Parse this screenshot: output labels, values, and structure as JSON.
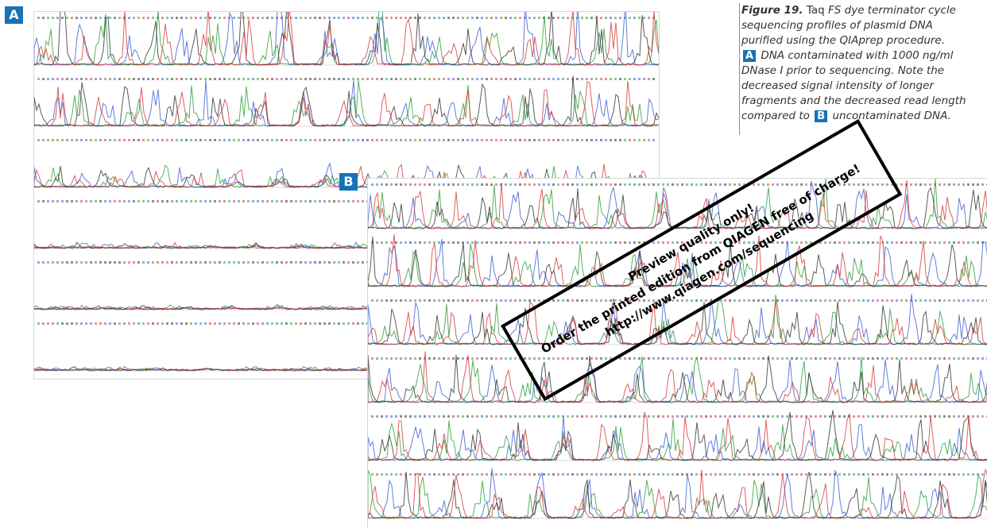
{
  "panel_a": {
    "label": "A"
  },
  "panel_b": {
    "label": "B"
  },
  "caption": {
    "fig_label": "Figure 19.",
    "taq": "Taq",
    "line1_rest": "FS dye terminator cycle",
    "line2": "sequencing profiles of plasmid DNA",
    "line3": "purified using the QIAprep procedure.",
    "badge_a": "A",
    "line4_rest": "DNA contaminated with 1000 ng/ml",
    "line5": "DNase I prior to sequencing. Note the",
    "line6": "decreased signal intensity of longer",
    "line7": "fragments and the decreased read length",
    "line8_pre": "compared to",
    "badge_b": "B",
    "line8_post": "uncontaminated DNA."
  },
  "stamp": {
    "line1": "Preview quality only!",
    "line2": "Order the printed edition from QIAGEN free of charge!",
    "line3": "http://www.qiagen.com/sequencing"
  },
  "colors": {
    "badge": "#1573b6",
    "trace_a": "#2e9e3a",
    "trace_c": "#3b5fd0",
    "trace_g": "#333333",
    "trace_t": "#d43838"
  }
}
